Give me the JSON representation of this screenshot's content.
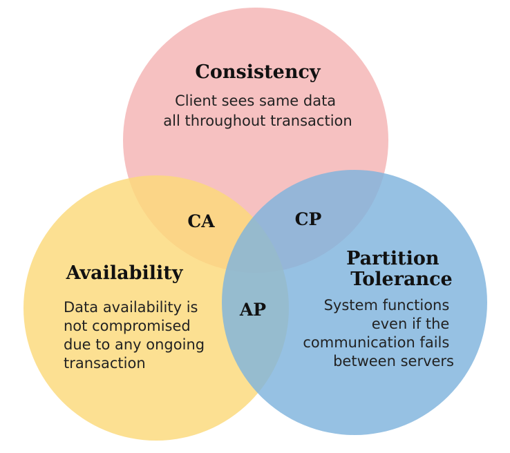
{
  "circles": {
    "consistency": {
      "title": "Consistency",
      "description": [
        "Client sees same data",
        "all throughout transaction"
      ],
      "color": "#f4b6b6",
      "opacity": 0.85
    },
    "availability": {
      "title": "Availability",
      "description": [
        "Data availability is",
        "not compromised",
        "due to any ongoing",
        "transaction"
      ],
      "color": "#fbd97a",
      "opacity": 0.82
    },
    "partition_tolerance": {
      "title": [
        "Partition",
        "Tolerance"
      ],
      "description": [
        "System functions",
        "even if the",
        "communication fails",
        "between servers"
      ],
      "color": "#7fb3dd",
      "opacity": 0.82
    }
  },
  "overlaps": {
    "ca": "CA",
    "cp": "CP",
    "ap": "AP"
  }
}
